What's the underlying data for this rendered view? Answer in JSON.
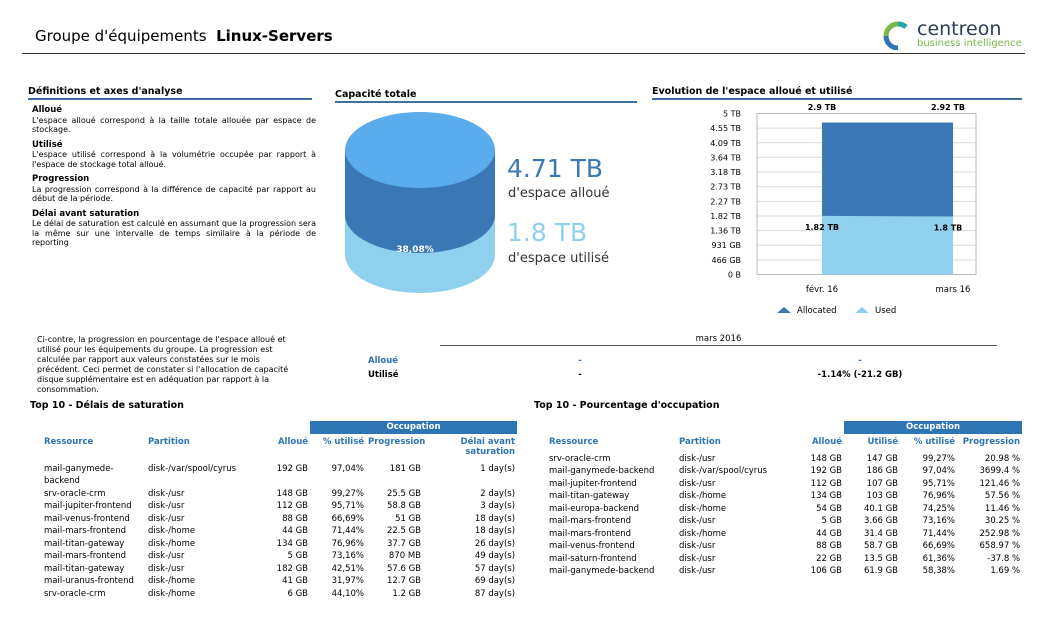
{
  "header": {
    "title": "Groupe d'équipements",
    "group": "Linux-Servers",
    "logo": "centreon",
    "logo_sub": "business intelligence"
  },
  "definitions": {
    "title": "Définitions et axes d'analyse",
    "items": [
      {
        "term": "Alloué",
        "text": "L'espace alloué correspond à la taille totale allouée par espace de stockage."
      },
      {
        "term": "Utilisé",
        "text": "L'espace utilisé correspond à la volumétrie occupée par rapport à l'espace de stockage total alloué."
      },
      {
        "term": "Progression",
        "text": "La progression correspond à la différence de capacité par rapport au début de la période."
      },
      {
        "term": "Délai avant saturation",
        "text": "Le délai de saturation est calculé en assumant que la progression sera la même sur une intervalle de temps similaire à la période de reporting"
      }
    ]
  },
  "capacity": {
    "title": "Capacité totale",
    "percent_label": "38,08%",
    "allocated": "4.71 TB",
    "allocated_label": "d'espace alloué",
    "used": "1.8 TB",
    "used_label": "d'espace utilisé"
  },
  "chart_data": {
    "type": "area",
    "stacked": true,
    "grid": true,
    "title": "Evolution de l'espace alloué et utilisé",
    "categories": [
      "févr. 16",
      "mars 16"
    ],
    "series": [
      {
        "name": "Allocated",
        "color": "#3a78b5",
        "values": [
          2.9,
          2.92
        ],
        "value_labels": [
          "2.9 TB",
          "2.92 TB"
        ]
      },
      {
        "name": "Used",
        "color": "#8fd0ef",
        "values": [
          1.82,
          1.8
        ],
        "value_labels": [
          "1.82 TB",
          "1.8 TB"
        ]
      }
    ],
    "ylim": [
      0,
      5
    ],
    "yticks": [
      {
        "value": 0,
        "label": "0 B"
      },
      {
        "value": 0.4545,
        "label": "466 GB"
      },
      {
        "value": 0.9091,
        "label": "931 GB"
      },
      {
        "value": 1.3636,
        "label": "1.36 TB"
      },
      {
        "value": 1.8182,
        "label": "1.82 TB"
      },
      {
        "value": 2.2727,
        "label": "2.27 TB"
      },
      {
        "value": 2.7273,
        "label": "2.73 TB"
      },
      {
        "value": 3.1818,
        "label": "3.18 TB"
      },
      {
        "value": 3.6364,
        "label": "3.64 TB"
      },
      {
        "value": 4.0909,
        "label": "4.09 TB"
      },
      {
        "value": 4.5455,
        "label": "4.55 TB"
      },
      {
        "value": 5,
        "label": "5 TB"
      }
    ]
  },
  "progression": {
    "text": "Ci-contre, la progression en pourcentage de l'espace alloué et utilisé pour les équipements du groupe. La progression est calculée par rapport aux valeurs constatées sur le mois précédent. Ceci permet de constater si l'allocation de capacité disque supplémentaire est en adéquation par rapport à la consommation.",
    "period": "mars 2016",
    "rows": [
      {
        "label": "Alloué",
        "values": [
          "-",
          "-"
        ]
      },
      {
        "label": "Utilisé",
        "values": [
          "-",
          "-1.14% (-21.2 GB)"
        ]
      }
    ]
  },
  "saturation": {
    "title": "Top 10 - Délais de saturation",
    "group_header": "Occupation",
    "columns": [
      "Ressource",
      "Partition",
      "Alloué",
      "% utilisé",
      "Progression",
      "Délai avant saturation"
    ],
    "rows": [
      [
        "mail-ganymede-backend",
        "disk-/var/spool/cyrus",
        "192 GB",
        "97,04%",
        "181 GB",
        "1 day(s)"
      ],
      [
        "srv-oracle-crm",
        "disk-/usr",
        "148 GB",
        "99,27%",
        "25.5 GB",
        "2 day(s)"
      ],
      [
        "mail-jupiter-frontend",
        "disk-/usr",
        "112 GB",
        "95,71%",
        "58.8 GB",
        "3 day(s)"
      ],
      [
        "mail-venus-frontend",
        "disk-/usr",
        "88 GB",
        "66,69%",
        "51 GB",
        "18 day(s)"
      ],
      [
        "mail-mars-frontend",
        "disk-/home",
        "44 GB",
        "71,44%",
        "22.5 GB",
        "18 day(s)"
      ],
      [
        "mail-titan-gateway",
        "disk-/home",
        "134 GB",
        "76,96%",
        "37.7 GB",
        "26 day(s)"
      ],
      [
        "mail-mars-frontend",
        "disk-/usr",
        "5 GB",
        "73,16%",
        "870 MB",
        "49 day(s)"
      ],
      [
        "mail-titan-gateway",
        "disk-/usr",
        "182 GB",
        "42,51%",
        "57.6 GB",
        "57 day(s)"
      ],
      [
        "mail-uranus-frontend",
        "disk-/home",
        "41 GB",
        "31,97%",
        "12.7 GB",
        "69 day(s)"
      ],
      [
        "srv-oracle-crm",
        "disk-/home",
        "6 GB",
        "44,10%",
        "1.2 GB",
        "87 day(s)"
      ]
    ]
  },
  "occupation": {
    "title": "Top 10 - Pourcentage d'occupation",
    "group_header": "Occupation",
    "columns": [
      "Ressource",
      "Partition",
      "Alloué",
      "Utilisé",
      "% utilisé",
      "Progression"
    ],
    "rows": [
      [
        "srv-oracle-crm",
        "disk-/usr",
        "148 GB",
        "147 GB",
        "99,27%",
        "20.98 %"
      ],
      [
        "mail-ganymede-backend",
        "disk-/var/spool/cyrus",
        "192 GB",
        "186 GB",
        "97,04%",
        "3699.4 %"
      ],
      [
        "mail-jupiter-frontend",
        "disk-/usr",
        "112 GB",
        "107 GB",
        "95,71%",
        "121.46 %"
      ],
      [
        "mail-titan-gateway",
        "disk-/home",
        "134 GB",
        "103 GB",
        "76,96%",
        "57.56 %"
      ],
      [
        "mail-europa-backend",
        "disk-/home",
        "54 GB",
        "40.1 GB",
        "74,25%",
        "11.46 %"
      ],
      [
        "mail-mars-frontend",
        "disk-/usr",
        "5 GB",
        "3.66 GB",
        "73,16%",
        "30.25 %"
      ],
      [
        "mail-mars-frontend",
        "disk-/home",
        "44 GB",
        "31.4 GB",
        "71,44%",
        "252.98 %"
      ],
      [
        "mail-venus-frontend",
        "disk-/usr",
        "88 GB",
        "58.7 GB",
        "66,69%",
        "658.97 %"
      ],
      [
        "mail-saturn-frontend",
        "disk-/usr",
        "22 GB",
        "13.5 GB",
        "61,36%",
        "-37.8 %"
      ],
      [
        "mail-ganymede-backend",
        "disk-/usr",
        "106 GB",
        "61.9 GB",
        "58,38%",
        "1.69 %"
      ]
    ]
  }
}
